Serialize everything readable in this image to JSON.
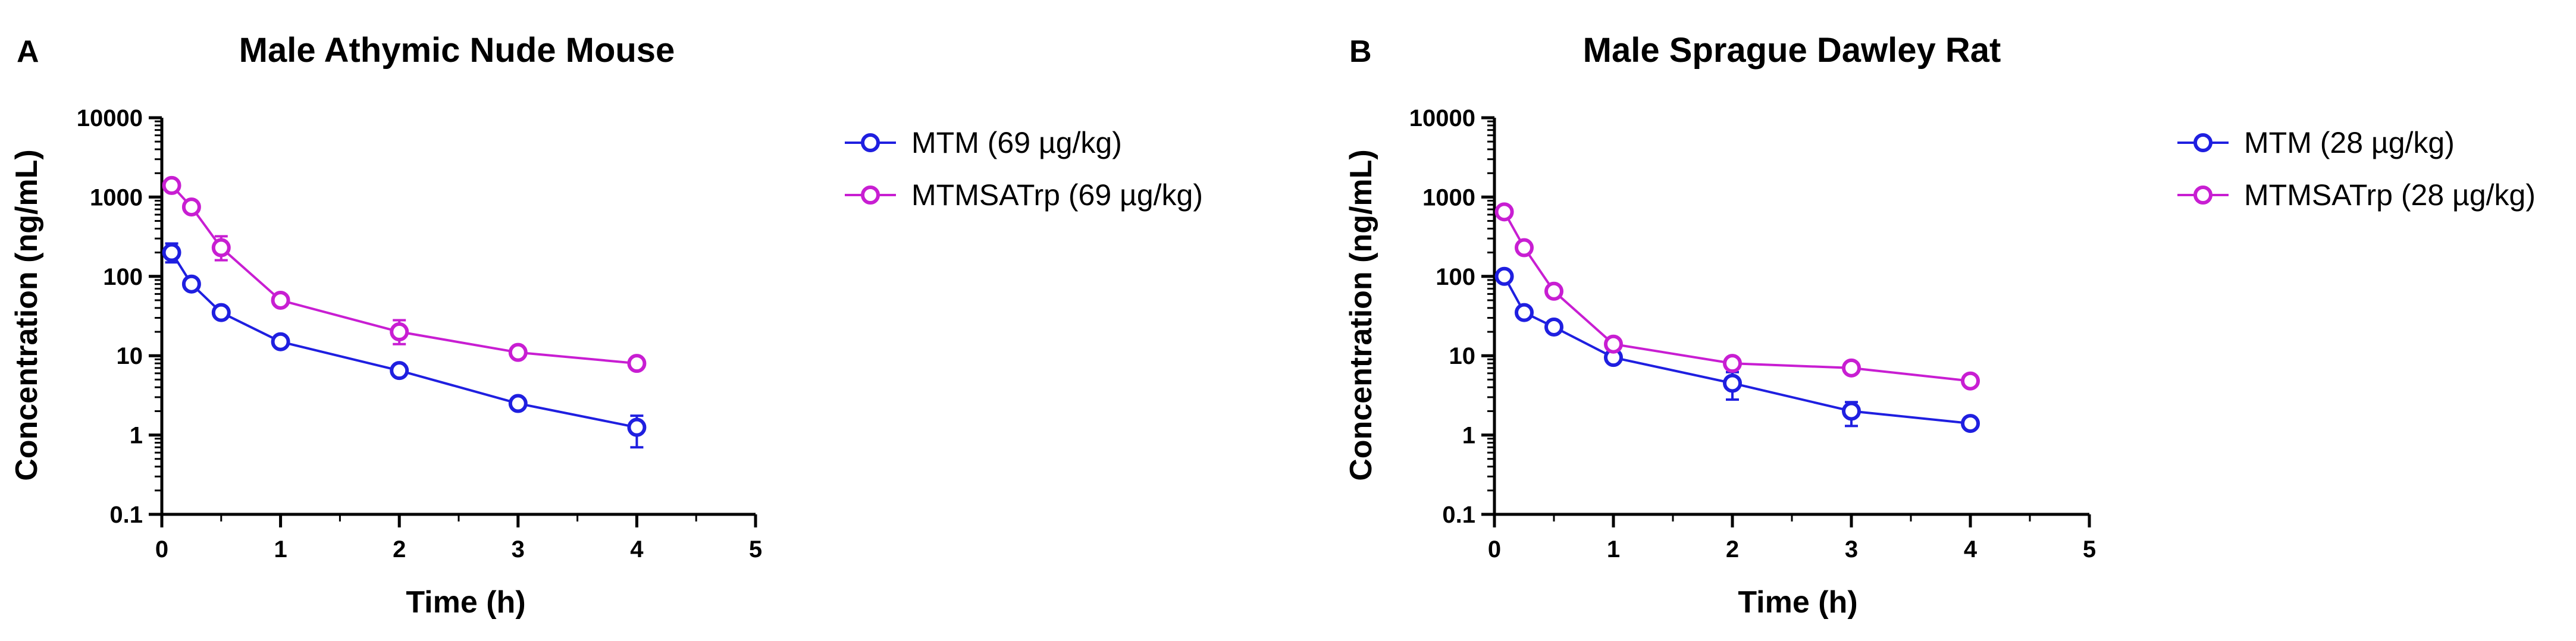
{
  "chart_data": [
    {
      "type": "line",
      "panel": "A",
      "title": "Male Athymic Nude Mouse",
      "xlabel": "Time (h)",
      "ylabel": "Concentration (ng/mL)",
      "xlim": [
        0,
        5
      ],
      "ylim": [
        0.1,
        10000
      ],
      "yscale": "log",
      "xticks": [
        "0",
        "1",
        "2",
        "3",
        "4",
        "5"
      ],
      "yticks": [
        "0.1",
        "1",
        "10",
        "100",
        "1000",
        "10000"
      ],
      "grid": false,
      "legend_position": "right",
      "series": [
        {
          "name": "MTM (69 µg/kg)",
          "color": "#1f1fe0",
          "x": [
            0.083,
            0.25,
            0.5,
            1,
            2,
            3,
            4
          ],
          "y": [
            200,
            80,
            35,
            15,
            6.5,
            2.5,
            1.25
          ],
          "err_lo": [
            150,
            70,
            30,
            13.5,
            5.8,
            2.25,
            0.7
          ],
          "err_hi": [
            260,
            92,
            40,
            16.5,
            7.2,
            2.75,
            1.75
          ]
        },
        {
          "name": "MTMSATrp (69 µg/kg)",
          "color": "#c81ed2",
          "x": [
            0.083,
            0.25,
            0.5,
            1,
            2,
            3,
            4
          ],
          "y": [
            1400,
            750,
            230,
            50,
            20,
            11,
            8
          ],
          "err_lo": [
            1250,
            650,
            160,
            45,
            14,
            10,
            7.5
          ],
          "err_hi": [
            1550,
            850,
            320,
            55,
            28,
            12,
            8.5
          ]
        }
      ]
    },
    {
      "type": "line",
      "panel": "B",
      "title": "Male Sprague Dawley Rat",
      "xlabel": "Time (h)",
      "ylabel": "Concentration (ng/mL)",
      "xlim": [
        0,
        5
      ],
      "ylim": [
        0.1,
        10000
      ],
      "yscale": "log",
      "xticks": [
        "0",
        "1",
        "2",
        "3",
        "4",
        "5"
      ],
      "yticks": [
        "0.1",
        "1",
        "10",
        "100",
        "1000",
        "10000"
      ],
      "grid": false,
      "legend_position": "right",
      "series": [
        {
          "name": "MTM (28 µg/kg)",
          "color": "#1f1fe0",
          "x": [
            0.083,
            0.25,
            0.5,
            1,
            2,
            3,
            4
          ],
          "y": [
            100,
            35,
            23,
            9.5,
            4.5,
            2.0,
            1.4
          ],
          "err_lo": [
            90,
            30,
            20,
            8.5,
            2.8,
            1.3,
            1.25
          ],
          "err_hi": [
            110,
            40,
            26,
            10.5,
            6.2,
            2.6,
            1.55
          ]
        },
        {
          "name": "MTMSATrp (28 µg/kg)",
          "color": "#c81ed2",
          "x": [
            0.083,
            0.25,
            0.5,
            1,
            2,
            3,
            4
          ],
          "y": [
            650,
            230,
            65,
            14,
            8,
            7,
            4.8
          ],
          "err_lo": [
            550,
            200,
            55,
            12.5,
            7,
            6.3,
            4.4
          ],
          "err_hi": [
            750,
            260,
            75,
            15.5,
            9,
            7.7,
            5.2
          ]
        }
      ]
    }
  ]
}
